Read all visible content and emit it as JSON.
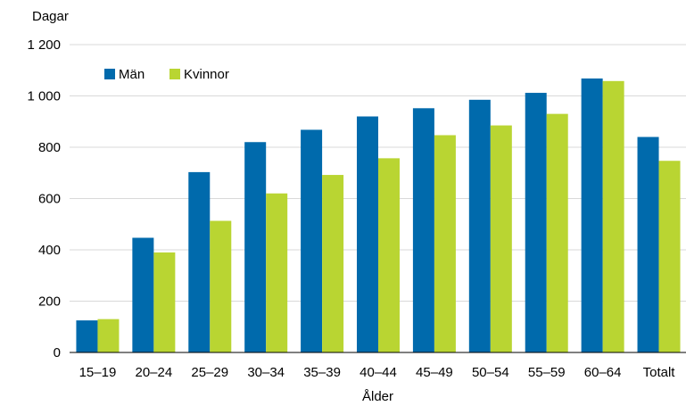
{
  "chart_data": {
    "type": "bar",
    "ylabel": "Dagar",
    "xlabel": "Ålder",
    "ylim": [
      0,
      1200
    ],
    "y_ticks": [
      0,
      200,
      400,
      600,
      800,
      1000,
      1200
    ],
    "y_tick_labels": [
      "0",
      "200",
      "400",
      "600",
      "800",
      "1 000",
      "1 200"
    ],
    "grid": true,
    "legend_position": "top-left",
    "categories": [
      "15–19",
      "20–24",
      "25–29",
      "30–34",
      "35–39",
      "40–44",
      "45–49",
      "50–54",
      "55–59",
      "60–64",
      "Totalt"
    ],
    "series": [
      {
        "name": "Män",
        "color": "#006aac",
        "values": [
          125,
          447,
          703,
          820,
          868,
          920,
          952,
          985,
          1012,
          1068,
          840
        ]
      },
      {
        "name": "Kvinnor",
        "color": "#b9d532",
        "values": [
          130,
          390,
          513,
          620,
          692,
          757,
          847,
          885,
          930,
          1058,
          747
        ]
      }
    ]
  }
}
